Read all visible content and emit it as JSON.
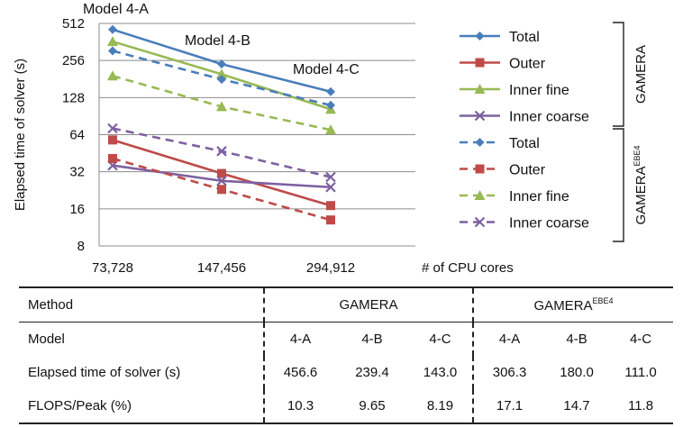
{
  "chart_data": {
    "type": "line",
    "ylabel": "Elapsed time of solver (s)",
    "xlabel": "# of CPU cores",
    "x": [
      "73,728",
      "147,456",
      "294,912"
    ],
    "y_scale": "log2",
    "ylim": [
      8,
      512
    ],
    "yticks": [
      "8",
      "16",
      "32",
      "64",
      "128",
      "256",
      "512"
    ],
    "grid": "horizontal",
    "annotations": [
      "Model 4-A",
      "Model 4-B",
      "Model 4-C"
    ],
    "groups": [
      {
        "name": "GAMERA",
        "sup": ""
      },
      {
        "name": "GAMERA",
        "sup": "EBE4"
      }
    ],
    "series": [
      {
        "group": 0,
        "name": "Total",
        "color": "#4a7ebb",
        "marker": "diamond",
        "dash": false,
        "values": [
          456.6,
          239.4,
          143.0
        ]
      },
      {
        "group": 0,
        "name": "Outer",
        "color": "#be4b48",
        "marker": "square",
        "dash": false,
        "values": [
          58,
          31,
          17
        ]
      },
      {
        "group": 0,
        "name": "Inner fine",
        "color": "#98b954",
        "marker": "triangle",
        "dash": false,
        "values": [
          365,
          198,
          103
        ]
      },
      {
        "group": 0,
        "name": "Inner coarse",
        "color": "#7d60a0",
        "marker": "x",
        "dash": false,
        "values": [
          36,
          27,
          24
        ]
      },
      {
        "group": 1,
        "name": "Total",
        "color": "#4a7ebb",
        "marker": "diamond",
        "dash": true,
        "values": [
          306.3,
          180.0,
          111.0
        ]
      },
      {
        "group": 1,
        "name": "Outer",
        "color": "#be4b48",
        "marker": "square",
        "dash": true,
        "values": [
          41,
          23,
          13
        ]
      },
      {
        "group": 1,
        "name": "Inner fine",
        "color": "#98b954",
        "marker": "triangle",
        "dash": true,
        "values": [
          192,
          108,
          70
        ]
      },
      {
        "group": 1,
        "name": "Inner coarse",
        "color": "#7d60a0",
        "marker": "x",
        "dash": true,
        "values": [
          72,
          47,
          29
        ]
      }
    ]
  },
  "table": {
    "method_label": "Method",
    "gamera": "GAMERA",
    "gamera_ebe": "GAMERA",
    "gamera_ebe_sup": "EBE4",
    "model_label": "Model",
    "models": [
      "4-A",
      "4-B",
      "4-C",
      "4-A",
      "4-B",
      "4-C"
    ],
    "rows": [
      {
        "label": "Elapsed time of solver (s)",
        "values": [
          "456.6",
          "239.4",
          "143.0",
          "306.3",
          "180.0",
          "111.0"
        ]
      },
      {
        "label": "FLOPS/Peak (%)",
        "values": [
          "10.3",
          "9.65",
          "8.19",
          "17.1",
          "14.7",
          "11.8"
        ]
      }
    ]
  }
}
